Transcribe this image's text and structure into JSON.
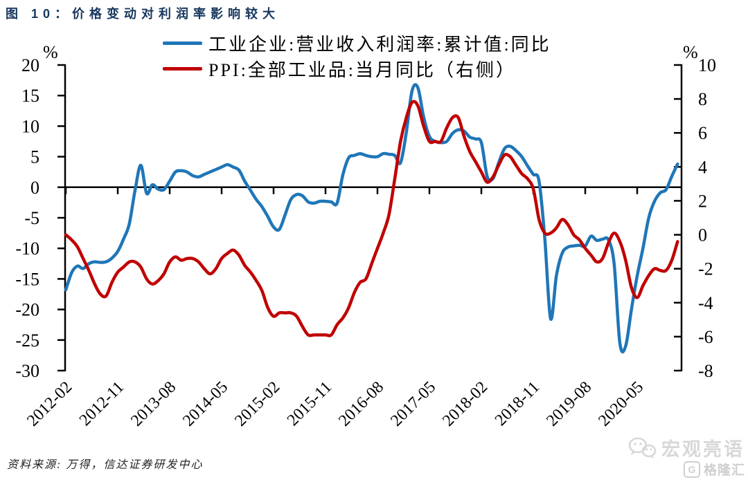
{
  "title": "图 10：价格变动对利润率影响较大",
  "legend": [
    {
      "label": "工业企业:营业收入利润率:累计值:同比",
      "color": "#1F76B8"
    },
    {
      "label": "PPI:全部工业品:当月同比（右侧）",
      "color": "#C00000"
    }
  ],
  "source_note": "资料来源: 万得，信达证券研发中心",
  "watermarks": {
    "wechat_icon": "wechat-chat-bubbles-icon",
    "wechat_account": "宏观亮语",
    "platform_logo": "G",
    "platform": "格隆汇"
  },
  "chart_data": {
    "type": "line",
    "start_month": "2012-02",
    "frequency": "monthly",
    "grid": "off",
    "legend_position": "top",
    "x_tick_labels": [
      "2012-02",
      "2012-11",
      "2013-08",
      "2014-05",
      "2015-02",
      "2015-11",
      "2016-08",
      "2017-05",
      "2018-02",
      "2018-11",
      "2019-08",
      "2020-05"
    ],
    "left_axis": {
      "unit": "%",
      "min": -30,
      "max": 20,
      "step": 5,
      "tick_labels": [
        "20",
        "15",
        "10",
        "5",
        "0",
        "-5",
        "-10",
        "-15",
        "-20",
        "-25",
        "-30"
      ]
    },
    "right_axis": {
      "unit": "%",
      "min": -8,
      "max": 10,
      "step": 2,
      "tick_labels": [
        "10",
        "8",
        "6",
        "4",
        "2",
        "0",
        "-2",
        "-4",
        "-6",
        "-8"
      ]
    },
    "series": [
      {
        "name": "工业企业:营业收入利润率:累计值:同比",
        "axis": "left",
        "color": "#1F76B8",
        "values": [
          -16.8,
          -14.0,
          -12.9,
          -13.3,
          -12.5,
          -12.2,
          -12.3,
          -12.2,
          -11.6,
          -10.5,
          -8.5,
          -6.0,
          -0.5,
          3.6,
          -1.0,
          0.4,
          -0.3,
          -0.4,
          1.0,
          2.5,
          2.7,
          2.5,
          1.9,
          1.7,
          2.1,
          2.5,
          2.9,
          3.3,
          3.7,
          3.3,
          2.8,
          1.0,
          -0.5,
          -2.0,
          -3.2,
          -4.8,
          -6.5,
          -6.9,
          -4.5,
          -2.0,
          -1.2,
          -1.4,
          -2.4,
          -2.6,
          -2.3,
          -2.3,
          -2.4,
          -2.6,
          2.0,
          4.8,
          5.2,
          5.5,
          5.2,
          5.0,
          5.0,
          5.5,
          5.4,
          5.2,
          4.0,
          9.0,
          15.8,
          16.3,
          11.5,
          8.3,
          7.5,
          7.3,
          7.5,
          8.8,
          9.4,
          9.2,
          8.2,
          7.9,
          7.3,
          1.8,
          1.4,
          4.0,
          6.3,
          6.7,
          6.0,
          5.0,
          3.5,
          2.1,
          1.0,
          -8.5,
          -21.5,
          -14.5,
          -10.8,
          -9.8,
          -9.6,
          -9.5,
          -9.6,
          -8.0,
          -8.7,
          -8.5,
          -8.6,
          -12.5,
          -25.5,
          -26.0,
          -20.0,
          -14.5,
          -10.0,
          -5.0,
          -2.3,
          -0.9,
          -0.4,
          1.8,
          3.8
        ]
      },
      {
        "name": "PPI:全部工业品:当月同比（右侧）",
        "axis": "right",
        "color": "#C00000",
        "values": [
          0.0,
          -0.3,
          -0.7,
          -1.4,
          -2.1,
          -2.9,
          -3.5,
          -3.6,
          -2.8,
          -2.2,
          -1.9,
          -1.6,
          -1.6,
          -1.9,
          -2.6,
          -2.9,
          -2.7,
          -2.3,
          -1.6,
          -1.3,
          -1.5,
          -1.4,
          -1.4,
          -1.6,
          -2.0,
          -2.3,
          -2.0,
          -1.4,
          -1.1,
          -0.9,
          -1.2,
          -1.8,
          -2.2,
          -2.7,
          -3.3,
          -4.3,
          -4.8,
          -4.6,
          -4.6,
          -4.6,
          -4.8,
          -5.4,
          -5.9,
          -5.9,
          -5.9,
          -5.9,
          -5.9,
          -5.3,
          -4.9,
          -4.3,
          -3.4,
          -2.8,
          -2.6,
          -1.7,
          -0.8,
          0.1,
          1.2,
          3.3,
          5.5,
          6.9,
          7.8,
          7.6,
          6.4,
          5.5,
          5.5,
          5.5,
          6.3,
          6.9,
          6.9,
          5.8,
          4.9,
          4.3,
          3.7,
          3.1,
          3.4,
          4.1,
          4.7,
          4.6,
          4.1,
          3.6,
          3.3,
          2.7,
          0.9,
          0.1,
          0.1,
          0.4,
          0.9,
          0.6,
          0.0,
          -0.3,
          -0.8,
          -1.2,
          -1.6,
          -1.4,
          -0.5,
          0.1,
          -0.4,
          -1.5,
          -3.1,
          -3.7,
          -3.0,
          -2.4,
          -2.0,
          -2.1,
          -2.1,
          -1.5,
          -0.4
        ]
      }
    ]
  }
}
